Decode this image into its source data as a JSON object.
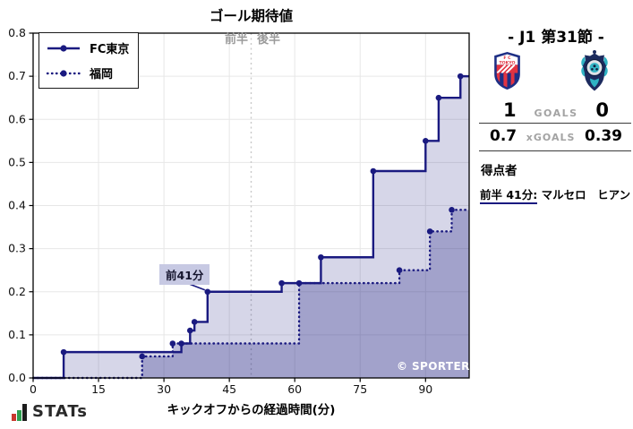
{
  "chart_data": {
    "type": "line",
    "subtype": "step-after-cumulative-xg",
    "title": "ゴール期待値",
    "xlabel": "キックオフからの経過時間(分)",
    "x_ticks": [
      0,
      15,
      30,
      45,
      60,
      75,
      90
    ],
    "x_max": 100,
    "y_ticks": [
      "0.0",
      "0.1",
      "0.2",
      "0.3",
      "0.4",
      "0.5",
      "0.6",
      "0.7",
      "0.8"
    ],
    "ylim": [
      0,
      0.8
    ],
    "grid": true,
    "half_divider_min": 50,
    "half_labels": {
      "first": "前半",
      "second": "後半"
    },
    "annotation": {
      "text": "前41分",
      "x_min": 40,
      "y_val": 0.2
    },
    "line_color": "#1a1a80",
    "fill_home": "rgba(30,30,130,0.18)",
    "fill_away": "rgba(30,30,130,0.28)",
    "series": [
      {
        "name": "FC東京",
        "style": "solid",
        "points": [
          [
            7,
            0.06
          ],
          [
            34,
            0.08
          ],
          [
            36,
            0.11
          ],
          [
            37,
            0.13
          ],
          [
            40,
            0.2
          ],
          [
            57,
            0.22
          ],
          [
            66,
            0.28
          ],
          [
            78,
            0.48
          ],
          [
            90,
            0.55
          ],
          [
            93,
            0.65
          ],
          [
            98,
            0.7
          ]
        ],
        "final": 0.7
      },
      {
        "name": "福岡",
        "style": "dotted",
        "points": [
          [
            25,
            0.05
          ],
          [
            32,
            0.08
          ],
          [
            61,
            0.22
          ],
          [
            84,
            0.25
          ],
          [
            91,
            0.34
          ],
          [
            96,
            0.39
          ]
        ],
        "final": 0.39
      }
    ]
  },
  "legend": {
    "items": [
      {
        "label": "FC東京",
        "style": "solid"
      },
      {
        "label": "福岡",
        "style": "dotted"
      }
    ]
  },
  "watermark": "© SPORTERIA",
  "branding": {
    "logo_text": "STATs"
  },
  "match_panel": {
    "header": "- J1 第31節 -",
    "goals": {
      "home": "1",
      "label": "GOALS",
      "away": "0"
    },
    "xgoals": {
      "home": "0.7",
      "label": "xGOALS",
      "away": "0.39"
    },
    "scorers": {
      "heading": "得点者",
      "items": [
        {
          "time": "前半 41分:",
          "name": "マルセロ　ヒアン"
        }
      ]
    }
  }
}
